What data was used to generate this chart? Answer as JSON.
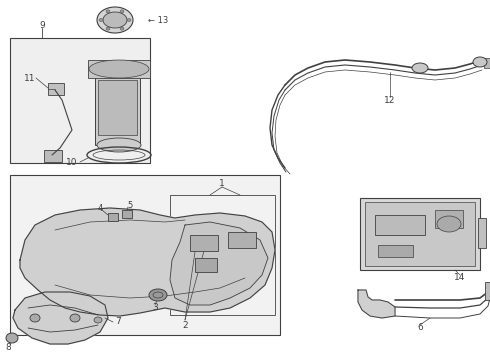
{
  "bg_color": "#ffffff",
  "line_color": "#404040",
  "fig_width": 4.9,
  "fig_height": 3.6,
  "dpi": 100
}
